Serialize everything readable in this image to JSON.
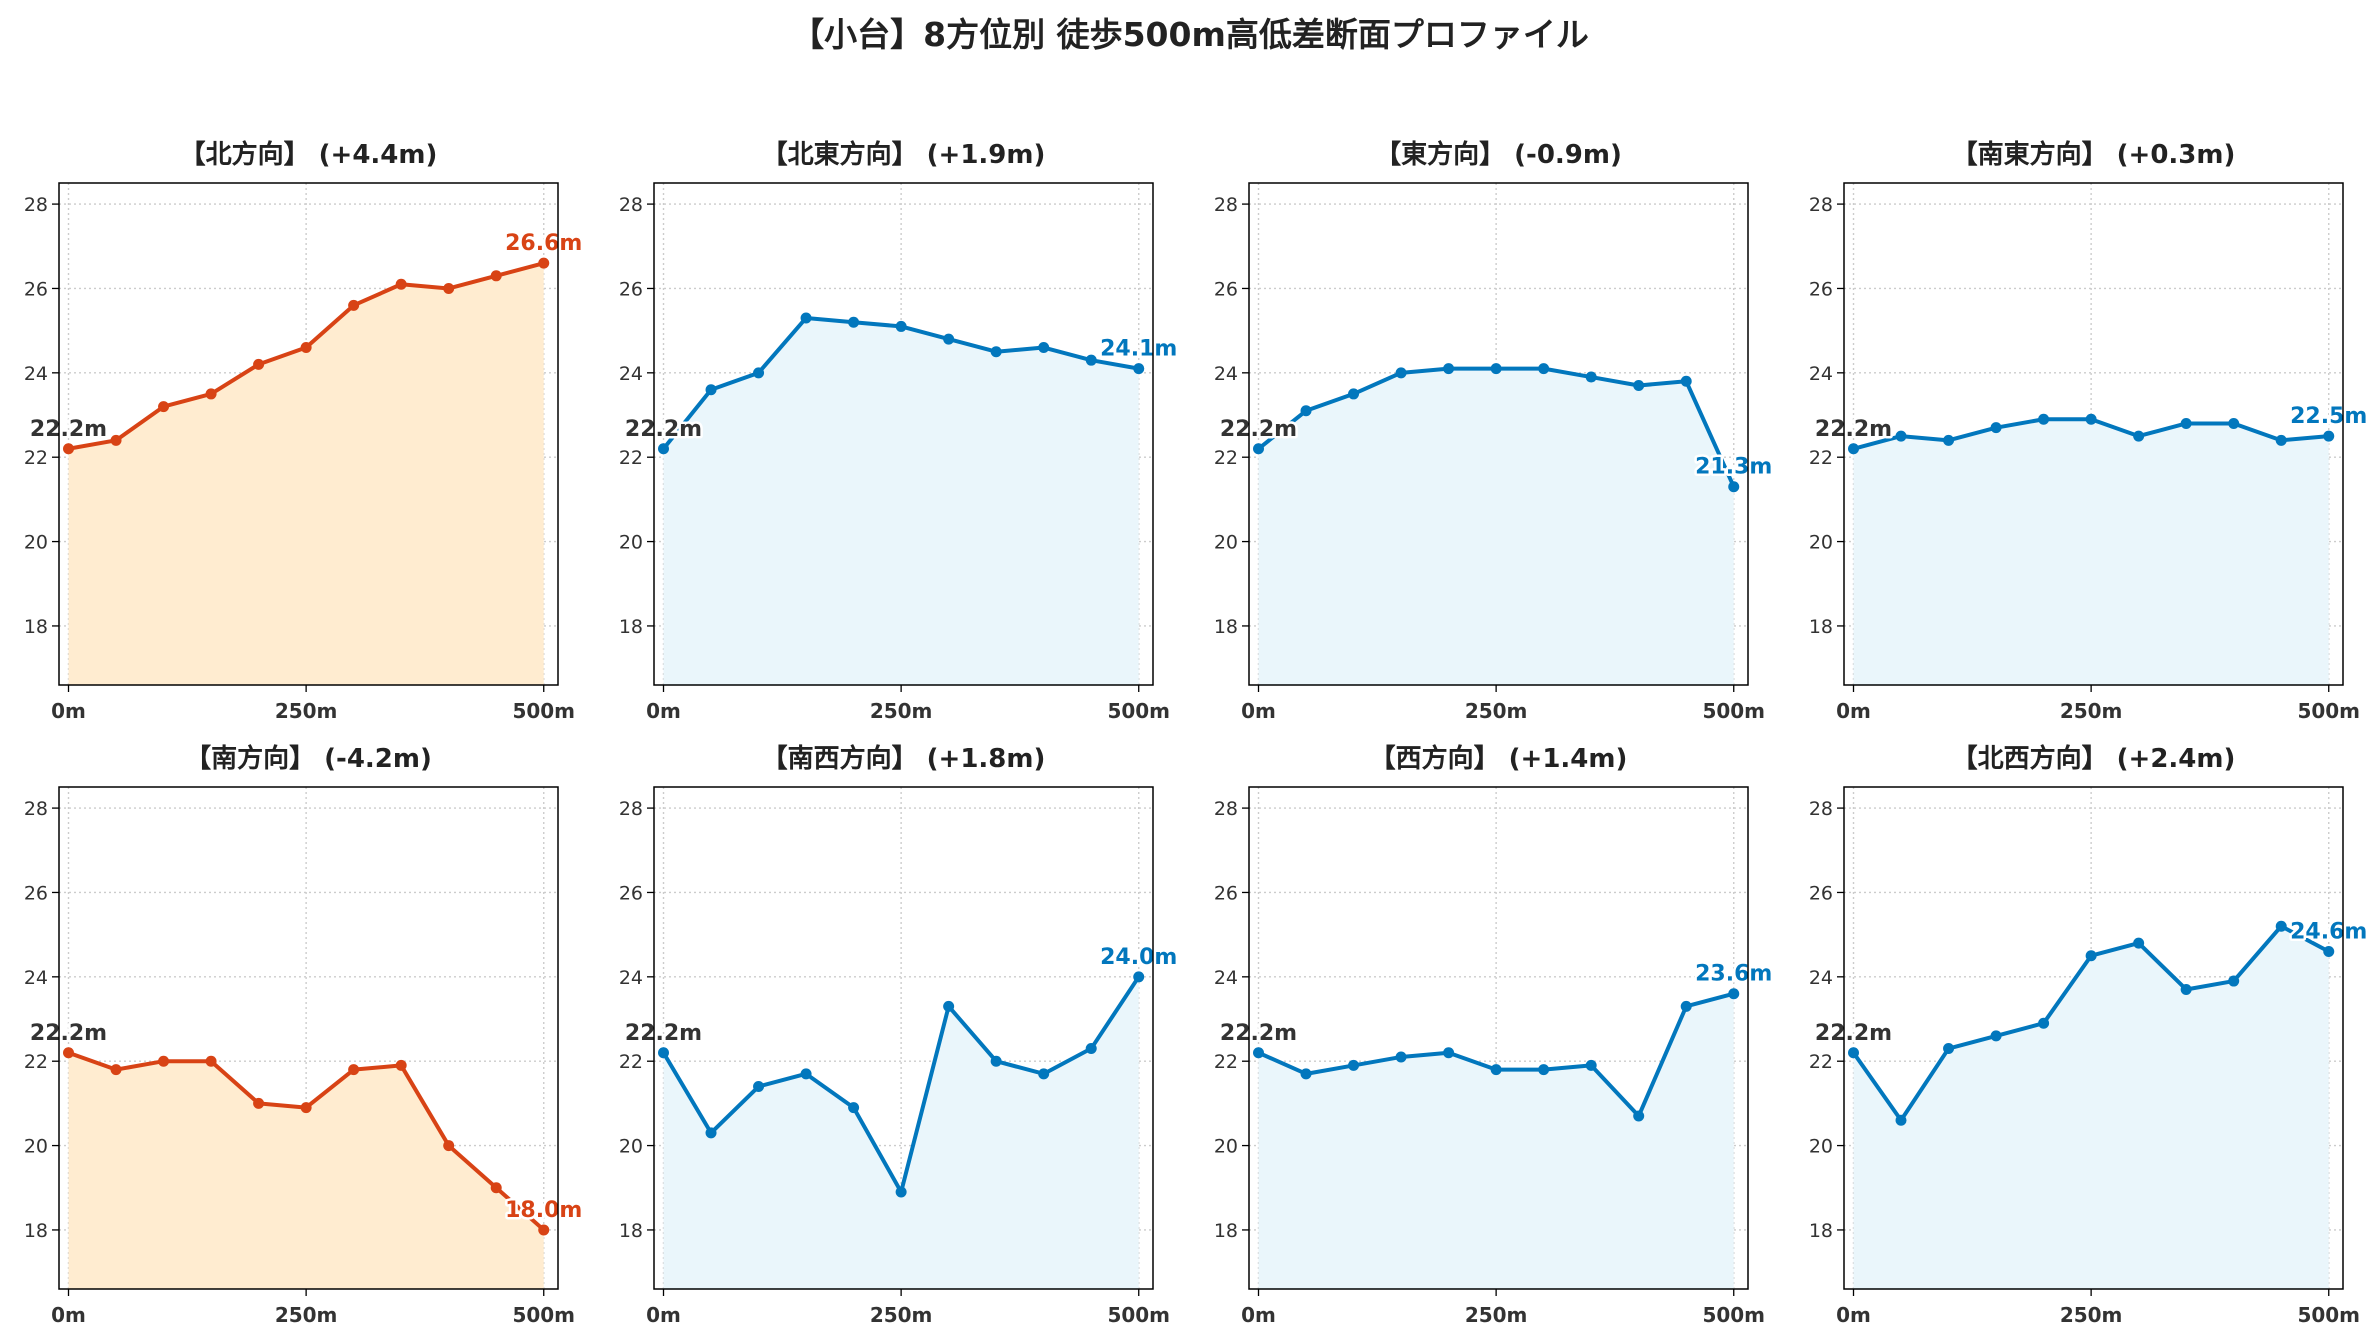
{
  "title": "【小台】8方位別 徒歩500m高低差断面プロファイル",
  "colors": {
    "up": "#d84315",
    "up_fill": "#ffecd0",
    "flat": "#0277bd",
    "flat_fill": "#eaf6fb",
    "start_label": "#333333",
    "grid": "#cccccc"
  },
  "chart_data": [
    {
      "type": "area",
      "title": "【北方向】 (+4.4m)",
      "style": "up",
      "x": [
        0,
        50,
        100,
        150,
        200,
        250,
        300,
        350,
        400,
        450,
        500
      ],
      "y": [
        22.2,
        22.4,
        23.2,
        23.5,
        24.2,
        24.6,
        25.6,
        26.1,
        26.0,
        26.3,
        26.6
      ],
      "start_label": "22.2m",
      "end_label": "26.6m",
      "xlim": [
        -10,
        515
      ],
      "ylim": [
        16.6,
        28.5
      ],
      "yticks": [
        18,
        20,
        22,
        24,
        26,
        28
      ],
      "xticks": [
        0,
        250,
        500
      ],
      "xticklabels": [
        "0m",
        "250m",
        "500m"
      ],
      "grid": true
    },
    {
      "type": "area",
      "title": "【北東方向】 (+1.9m)",
      "style": "flat",
      "x": [
        0,
        50,
        100,
        150,
        200,
        250,
        300,
        350,
        400,
        450,
        500
      ],
      "y": [
        22.2,
        23.6,
        24.0,
        25.3,
        25.2,
        25.1,
        24.8,
        24.5,
        24.6,
        24.3,
        24.1
      ],
      "start_label": "22.2m",
      "end_label": "24.1m",
      "xlim": [
        -10,
        515
      ],
      "ylim": [
        16.6,
        28.5
      ],
      "yticks": [
        18,
        20,
        22,
        24,
        26,
        28
      ],
      "xticks": [
        0,
        250,
        500
      ],
      "xticklabels": [
        "0m",
        "250m",
        "500m"
      ],
      "grid": true
    },
    {
      "type": "area",
      "title": "【東方向】 (-0.9m)",
      "style": "flat",
      "x": [
        0,
        50,
        100,
        150,
        200,
        250,
        300,
        350,
        400,
        450,
        500
      ],
      "y": [
        22.2,
        23.1,
        23.5,
        24.0,
        24.1,
        24.1,
        24.1,
        23.9,
        23.7,
        23.8,
        21.3
      ],
      "start_label": "22.2m",
      "end_label": "21.3m",
      "xlim": [
        -10,
        515
      ],
      "ylim": [
        16.6,
        28.5
      ],
      "yticks": [
        18,
        20,
        22,
        24,
        26,
        28
      ],
      "xticks": [
        0,
        250,
        500
      ],
      "xticklabels": [
        "0m",
        "250m",
        "500m"
      ],
      "grid": true
    },
    {
      "type": "area",
      "title": "【南東方向】 (+0.3m)",
      "style": "flat",
      "x": [
        0,
        50,
        100,
        150,
        200,
        250,
        300,
        350,
        400,
        450,
        500
      ],
      "y": [
        22.2,
        22.5,
        22.4,
        22.7,
        22.9,
        22.9,
        22.5,
        22.8,
        22.8,
        22.4,
        22.5
      ],
      "start_label": "22.2m",
      "end_label": "22.5m",
      "xlim": [
        -10,
        515
      ],
      "ylim": [
        16.6,
        28.5
      ],
      "yticks": [
        18,
        20,
        22,
        24,
        26,
        28
      ],
      "xticks": [
        0,
        250,
        500
      ],
      "xticklabels": [
        "0m",
        "250m",
        "500m"
      ],
      "grid": true
    },
    {
      "type": "area",
      "title": "【南方向】 (-4.2m)",
      "style": "up",
      "x": [
        0,
        50,
        100,
        150,
        200,
        250,
        300,
        350,
        400,
        450,
        500
      ],
      "y": [
        22.2,
        21.8,
        22.0,
        22.0,
        21.0,
        20.9,
        21.8,
        21.9,
        20.0,
        19.0,
        18.0
      ],
      "start_label": "22.2m",
      "end_label": "18.0m",
      "xlim": [
        -10,
        515
      ],
      "ylim": [
        16.6,
        28.5
      ],
      "yticks": [
        18,
        20,
        22,
        24,
        26,
        28
      ],
      "xticks": [
        0,
        250,
        500
      ],
      "xticklabels": [
        "0m",
        "250m",
        "500m"
      ],
      "grid": true
    },
    {
      "type": "area",
      "title": "【南西方向】 (+1.8m)",
      "style": "flat",
      "x": [
        0,
        50,
        100,
        150,
        200,
        250,
        300,
        350,
        400,
        450,
        500
      ],
      "y": [
        22.2,
        20.3,
        21.4,
        21.7,
        20.9,
        18.9,
        23.3,
        22.0,
        21.7,
        22.3,
        24.0
      ],
      "start_label": "22.2m",
      "end_label": "24.0m",
      "xlim": [
        -10,
        515
      ],
      "ylim": [
        16.6,
        28.5
      ],
      "yticks": [
        18,
        20,
        22,
        24,
        26,
        28
      ],
      "xticks": [
        0,
        250,
        500
      ],
      "xticklabels": [
        "0m",
        "250m",
        "500m"
      ],
      "grid": true
    },
    {
      "type": "area",
      "title": "【西方向】 (+1.4m)",
      "style": "flat",
      "x": [
        0,
        50,
        100,
        150,
        200,
        250,
        300,
        350,
        400,
        450,
        500
      ],
      "y": [
        22.2,
        21.7,
        21.9,
        22.1,
        22.2,
        21.8,
        21.8,
        21.9,
        20.7,
        23.3,
        23.6
      ],
      "start_label": "22.2m",
      "end_label": "23.6m",
      "xlim": [
        -10,
        515
      ],
      "ylim": [
        16.6,
        28.5
      ],
      "yticks": [
        18,
        20,
        22,
        24,
        26,
        28
      ],
      "xticks": [
        0,
        250,
        500
      ],
      "xticklabels": [
        "0m",
        "250m",
        "500m"
      ],
      "grid": true
    },
    {
      "type": "area",
      "title": "【北西方向】 (+2.4m)",
      "style": "flat",
      "x": [
        0,
        50,
        100,
        150,
        200,
        250,
        300,
        350,
        400,
        450,
        500
      ],
      "y": [
        22.2,
        20.6,
        22.3,
        22.6,
        22.9,
        24.5,
        24.8,
        23.7,
        23.9,
        25.2,
        24.6
      ],
      "start_label": "22.2m",
      "end_label": "24.6m",
      "xlim": [
        -10,
        515
      ],
      "ylim": [
        16.6,
        28.5
      ],
      "yticks": [
        18,
        20,
        22,
        24,
        26,
        28
      ],
      "xticks": [
        0,
        250,
        500
      ],
      "xticklabels": [
        "0m",
        "250m",
        "500m"
      ],
      "grid": true
    }
  ]
}
